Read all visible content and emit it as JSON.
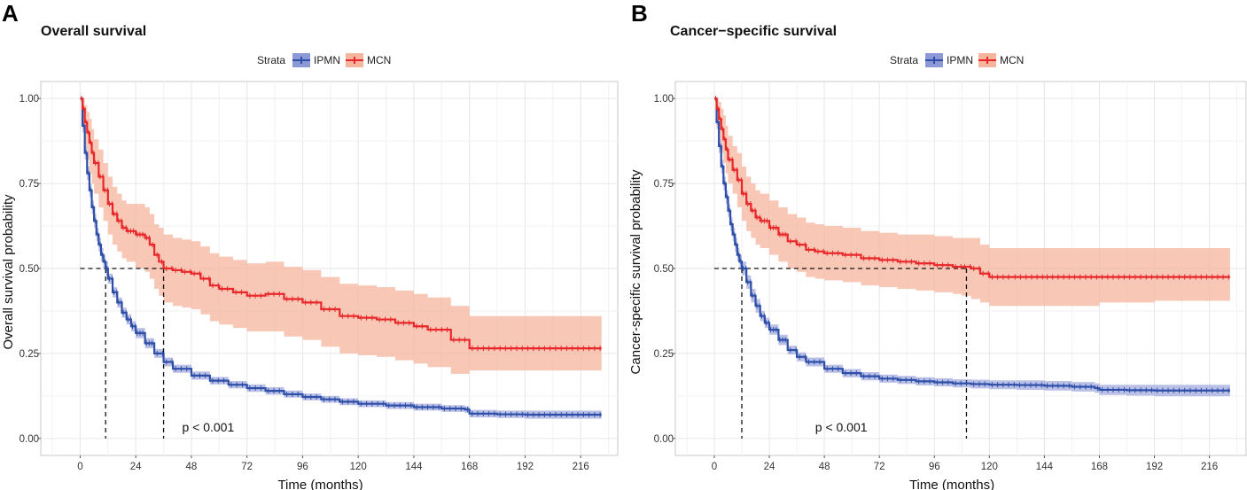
{
  "colors": {
    "ipmn": "#2e4fa8",
    "ipmn_band": "#8d98d6",
    "mcn": "#e8272a",
    "mcn_band": "#f5b49c",
    "grid": "#e6e6e6",
    "border": "#c8c8c8"
  },
  "legend": {
    "strata_label": "Strata",
    "entries": [
      "IPMN",
      "MCN"
    ]
  },
  "chart_data": [
    {
      "panel": "A",
      "type": "line",
      "title": "Overall survival",
      "xlabel": "Time (months)",
      "ylabel": "Overall survival probability",
      "xlim": [
        -17,
        232
      ],
      "ylim": [
        -0.05,
        1.05
      ],
      "xticks": [
        0,
        24,
        48,
        72,
        96,
        120,
        144,
        168,
        192,
        216
      ],
      "yticks": [
        0.0,
        0.25,
        0.5,
        0.75,
        1.0
      ],
      "ytick_labels": [
        "0.00",
        "0.25",
        "0.50",
        "0.75",
        "1.00"
      ],
      "pvalue": "p < 0.001",
      "pvalue_pos": [
        44,
        0.02
      ],
      "median_lines": [
        11,
        36
      ],
      "series": [
        {
          "name": "IPMN",
          "x": [
            0,
            1,
            2,
            3,
            4,
            5,
            6,
            7,
            8,
            9,
            10,
            11,
            12,
            14,
            16,
            18,
            20,
            22,
            24,
            28,
            32,
            36,
            40,
            48,
            56,
            64,
            72,
            80,
            88,
            96,
            104,
            112,
            120,
            132,
            144,
            156,
            166,
            168,
            180,
            192,
            204,
            216,
            225
          ],
          "y": [
            1.0,
            0.92,
            0.84,
            0.78,
            0.73,
            0.68,
            0.64,
            0.6,
            0.57,
            0.54,
            0.52,
            0.5,
            0.47,
            0.43,
            0.4,
            0.37,
            0.35,
            0.33,
            0.31,
            0.28,
            0.25,
            0.225,
            0.205,
            0.185,
            0.17,
            0.158,
            0.148,
            0.14,
            0.13,
            0.122,
            0.115,
            0.108,
            0.102,
            0.097,
            0.092,
            0.088,
            0.085,
            0.073,
            0.071,
            0.07,
            0.07,
            0.07,
            0.07
          ],
          "lower": [
            1.0,
            0.9,
            0.82,
            0.76,
            0.71,
            0.66,
            0.62,
            0.58,
            0.55,
            0.52,
            0.5,
            0.48,
            0.455,
            0.415,
            0.385,
            0.355,
            0.335,
            0.315,
            0.295,
            0.265,
            0.237,
            0.212,
            0.193,
            0.173,
            0.159,
            0.147,
            0.137,
            0.129,
            0.12,
            0.112,
            0.105,
            0.098,
            0.092,
            0.087,
            0.082,
            0.078,
            0.075,
            0.062,
            0.06,
            0.058,
            0.058,
            0.058,
            0.058
          ],
          "upper": [
            1.0,
            0.94,
            0.86,
            0.8,
            0.75,
            0.7,
            0.66,
            0.62,
            0.59,
            0.56,
            0.54,
            0.52,
            0.485,
            0.445,
            0.415,
            0.385,
            0.365,
            0.345,
            0.325,
            0.295,
            0.263,
            0.238,
            0.217,
            0.197,
            0.181,
            0.169,
            0.159,
            0.151,
            0.141,
            0.132,
            0.125,
            0.118,
            0.112,
            0.107,
            0.102,
            0.098,
            0.095,
            0.084,
            0.082,
            0.082,
            0.082,
            0.082,
            0.082
          ]
        },
        {
          "name": "MCN",
          "x": [
            0,
            1,
            2,
            3,
            4,
            5,
            6,
            8,
            10,
            12,
            14,
            16,
            18,
            20,
            24,
            28,
            30,
            32,
            34,
            36,
            40,
            44,
            48,
            52,
            56,
            60,
            66,
            72,
            80,
            88,
            96,
            104,
            112,
            120,
            128,
            136,
            144,
            150,
            160,
            168,
            180,
            192,
            204,
            216,
            225
          ],
          "y": [
            1.0,
            0.97,
            0.93,
            0.9,
            0.87,
            0.84,
            0.81,
            0.77,
            0.73,
            0.69,
            0.66,
            0.64,
            0.62,
            0.61,
            0.6,
            0.59,
            0.57,
            0.54,
            0.52,
            0.5,
            0.495,
            0.49,
            0.485,
            0.47,
            0.45,
            0.44,
            0.43,
            0.42,
            0.425,
            0.41,
            0.4,
            0.38,
            0.36,
            0.355,
            0.35,
            0.34,
            0.33,
            0.32,
            0.29,
            0.265,
            0.265,
            0.265,
            0.265,
            0.265,
            0.265
          ],
          "lower": [
            1.0,
            0.91,
            0.86,
            0.82,
            0.78,
            0.75,
            0.72,
            0.68,
            0.64,
            0.6,
            0.57,
            0.55,
            0.53,
            0.52,
            0.5,
            0.49,
            0.47,
            0.44,
            0.42,
            0.4,
            0.39,
            0.385,
            0.38,
            0.365,
            0.345,
            0.335,
            0.325,
            0.315,
            0.315,
            0.3,
            0.29,
            0.27,
            0.25,
            0.245,
            0.24,
            0.23,
            0.22,
            0.21,
            0.19,
            0.2,
            0.2,
            0.2,
            0.2,
            0.2,
            0.2
          ],
          "upper": [
            1.0,
            1.0,
            0.98,
            0.96,
            0.94,
            0.91,
            0.88,
            0.85,
            0.81,
            0.77,
            0.74,
            0.72,
            0.7,
            0.69,
            0.69,
            0.68,
            0.66,
            0.63,
            0.62,
            0.6,
            0.59,
            0.585,
            0.58,
            0.565,
            0.545,
            0.535,
            0.525,
            0.515,
            0.52,
            0.505,
            0.495,
            0.475,
            0.455,
            0.45,
            0.445,
            0.435,
            0.425,
            0.415,
            0.39,
            0.36,
            0.36,
            0.36,
            0.36,
            0.36,
            0.36
          ]
        }
      ]
    },
    {
      "panel": "B",
      "type": "line",
      "title": "Cancer−specific survival",
      "xlabel": "Time (months)",
      "ylabel": "Cancer-specific survival probability",
      "xlim": [
        -17,
        232
      ],
      "ylim": [
        -0.05,
        1.05
      ],
      "xticks": [
        0,
        24,
        48,
        72,
        96,
        120,
        144,
        168,
        192,
        216
      ],
      "yticks": [
        0.0,
        0.25,
        0.5,
        0.75,
        1.0
      ],
      "ytick_labels": [
        "0.00",
        "0.25",
        "0.50",
        "0.75",
        "1.00"
      ],
      "pvalue": "p < 0.001",
      "pvalue_pos": [
        44,
        0.02
      ],
      "median_lines": [
        12,
        110
      ],
      "series": [
        {
          "name": "IPMN",
          "x": [
            0,
            1,
            2,
            3,
            4,
            5,
            6,
            7,
            8,
            9,
            10,
            11,
            12,
            14,
            16,
            18,
            20,
            22,
            24,
            28,
            32,
            36,
            40,
            48,
            56,
            64,
            72,
            80,
            88,
            96,
            104,
            112,
            120,
            132,
            144,
            156,
            166,
            168,
            180,
            192,
            204,
            216,
            225
          ],
          "y": [
            1.0,
            0.93,
            0.86,
            0.8,
            0.75,
            0.71,
            0.67,
            0.63,
            0.6,
            0.57,
            0.54,
            0.52,
            0.5,
            0.46,
            0.42,
            0.39,
            0.36,
            0.34,
            0.32,
            0.29,
            0.26,
            0.24,
            0.225,
            0.205,
            0.192,
            0.183,
            0.176,
            0.172,
            0.168,
            0.165,
            0.162,
            0.16,
            0.158,
            0.157,
            0.155,
            0.152,
            0.148,
            0.143,
            0.142,
            0.141,
            0.141,
            0.141,
            0.141
          ],
          "lower": [
            1.0,
            0.91,
            0.84,
            0.78,
            0.73,
            0.69,
            0.65,
            0.61,
            0.58,
            0.55,
            0.52,
            0.5,
            0.48,
            0.44,
            0.4,
            0.37,
            0.345,
            0.325,
            0.305,
            0.275,
            0.247,
            0.227,
            0.212,
            0.193,
            0.18,
            0.171,
            0.164,
            0.16,
            0.156,
            0.153,
            0.15,
            0.147,
            0.145,
            0.143,
            0.141,
            0.138,
            0.134,
            0.128,
            0.126,
            0.124,
            0.124,
            0.124,
            0.124
          ],
          "upper": [
            1.0,
            0.95,
            0.88,
            0.82,
            0.77,
            0.73,
            0.69,
            0.65,
            0.62,
            0.59,
            0.56,
            0.54,
            0.52,
            0.48,
            0.44,
            0.41,
            0.375,
            0.355,
            0.335,
            0.305,
            0.273,
            0.253,
            0.238,
            0.217,
            0.204,
            0.195,
            0.188,
            0.184,
            0.18,
            0.177,
            0.174,
            0.173,
            0.171,
            0.171,
            0.169,
            0.166,
            0.162,
            0.158,
            0.158,
            0.158,
            0.158,
            0.158,
            0.158
          ]
        },
        {
          "name": "MCN",
          "x": [
            0,
            1,
            2,
            3,
            4,
            5,
            6,
            8,
            10,
            12,
            14,
            16,
            18,
            20,
            24,
            28,
            32,
            36,
            40,
            44,
            48,
            56,
            64,
            72,
            80,
            88,
            96,
            104,
            108,
            112,
            116,
            120,
            130,
            144,
            168,
            192,
            216,
            225
          ],
          "y": [
            1.0,
            0.97,
            0.94,
            0.91,
            0.88,
            0.85,
            0.82,
            0.79,
            0.76,
            0.72,
            0.69,
            0.67,
            0.65,
            0.64,
            0.62,
            0.6,
            0.58,
            0.57,
            0.555,
            0.55,
            0.545,
            0.54,
            0.53,
            0.525,
            0.52,
            0.515,
            0.51,
            0.505,
            0.505,
            0.5,
            0.485,
            0.475,
            0.475,
            0.475,
            0.475,
            0.475,
            0.475,
            0.475
          ],
          "lower": [
            1.0,
            0.92,
            0.88,
            0.84,
            0.81,
            0.78,
            0.75,
            0.72,
            0.68,
            0.64,
            0.61,
            0.59,
            0.57,
            0.56,
            0.54,
            0.52,
            0.5,
            0.49,
            0.475,
            0.47,
            0.465,
            0.46,
            0.45,
            0.445,
            0.44,
            0.435,
            0.43,
            0.425,
            0.42,
            0.41,
            0.4,
            0.39,
            0.39,
            0.39,
            0.4,
            0.405,
            0.405,
            0.405
          ],
          "upper": [
            1.0,
            1.0,
            0.99,
            0.97,
            0.95,
            0.92,
            0.89,
            0.86,
            0.84,
            0.8,
            0.77,
            0.75,
            0.73,
            0.72,
            0.7,
            0.68,
            0.66,
            0.65,
            0.635,
            0.63,
            0.625,
            0.62,
            0.61,
            0.605,
            0.6,
            0.6,
            0.595,
            0.59,
            0.59,
            0.59,
            0.57,
            0.56,
            0.56,
            0.56,
            0.56,
            0.56,
            0.56,
            0.56
          ]
        }
      ]
    }
  ]
}
